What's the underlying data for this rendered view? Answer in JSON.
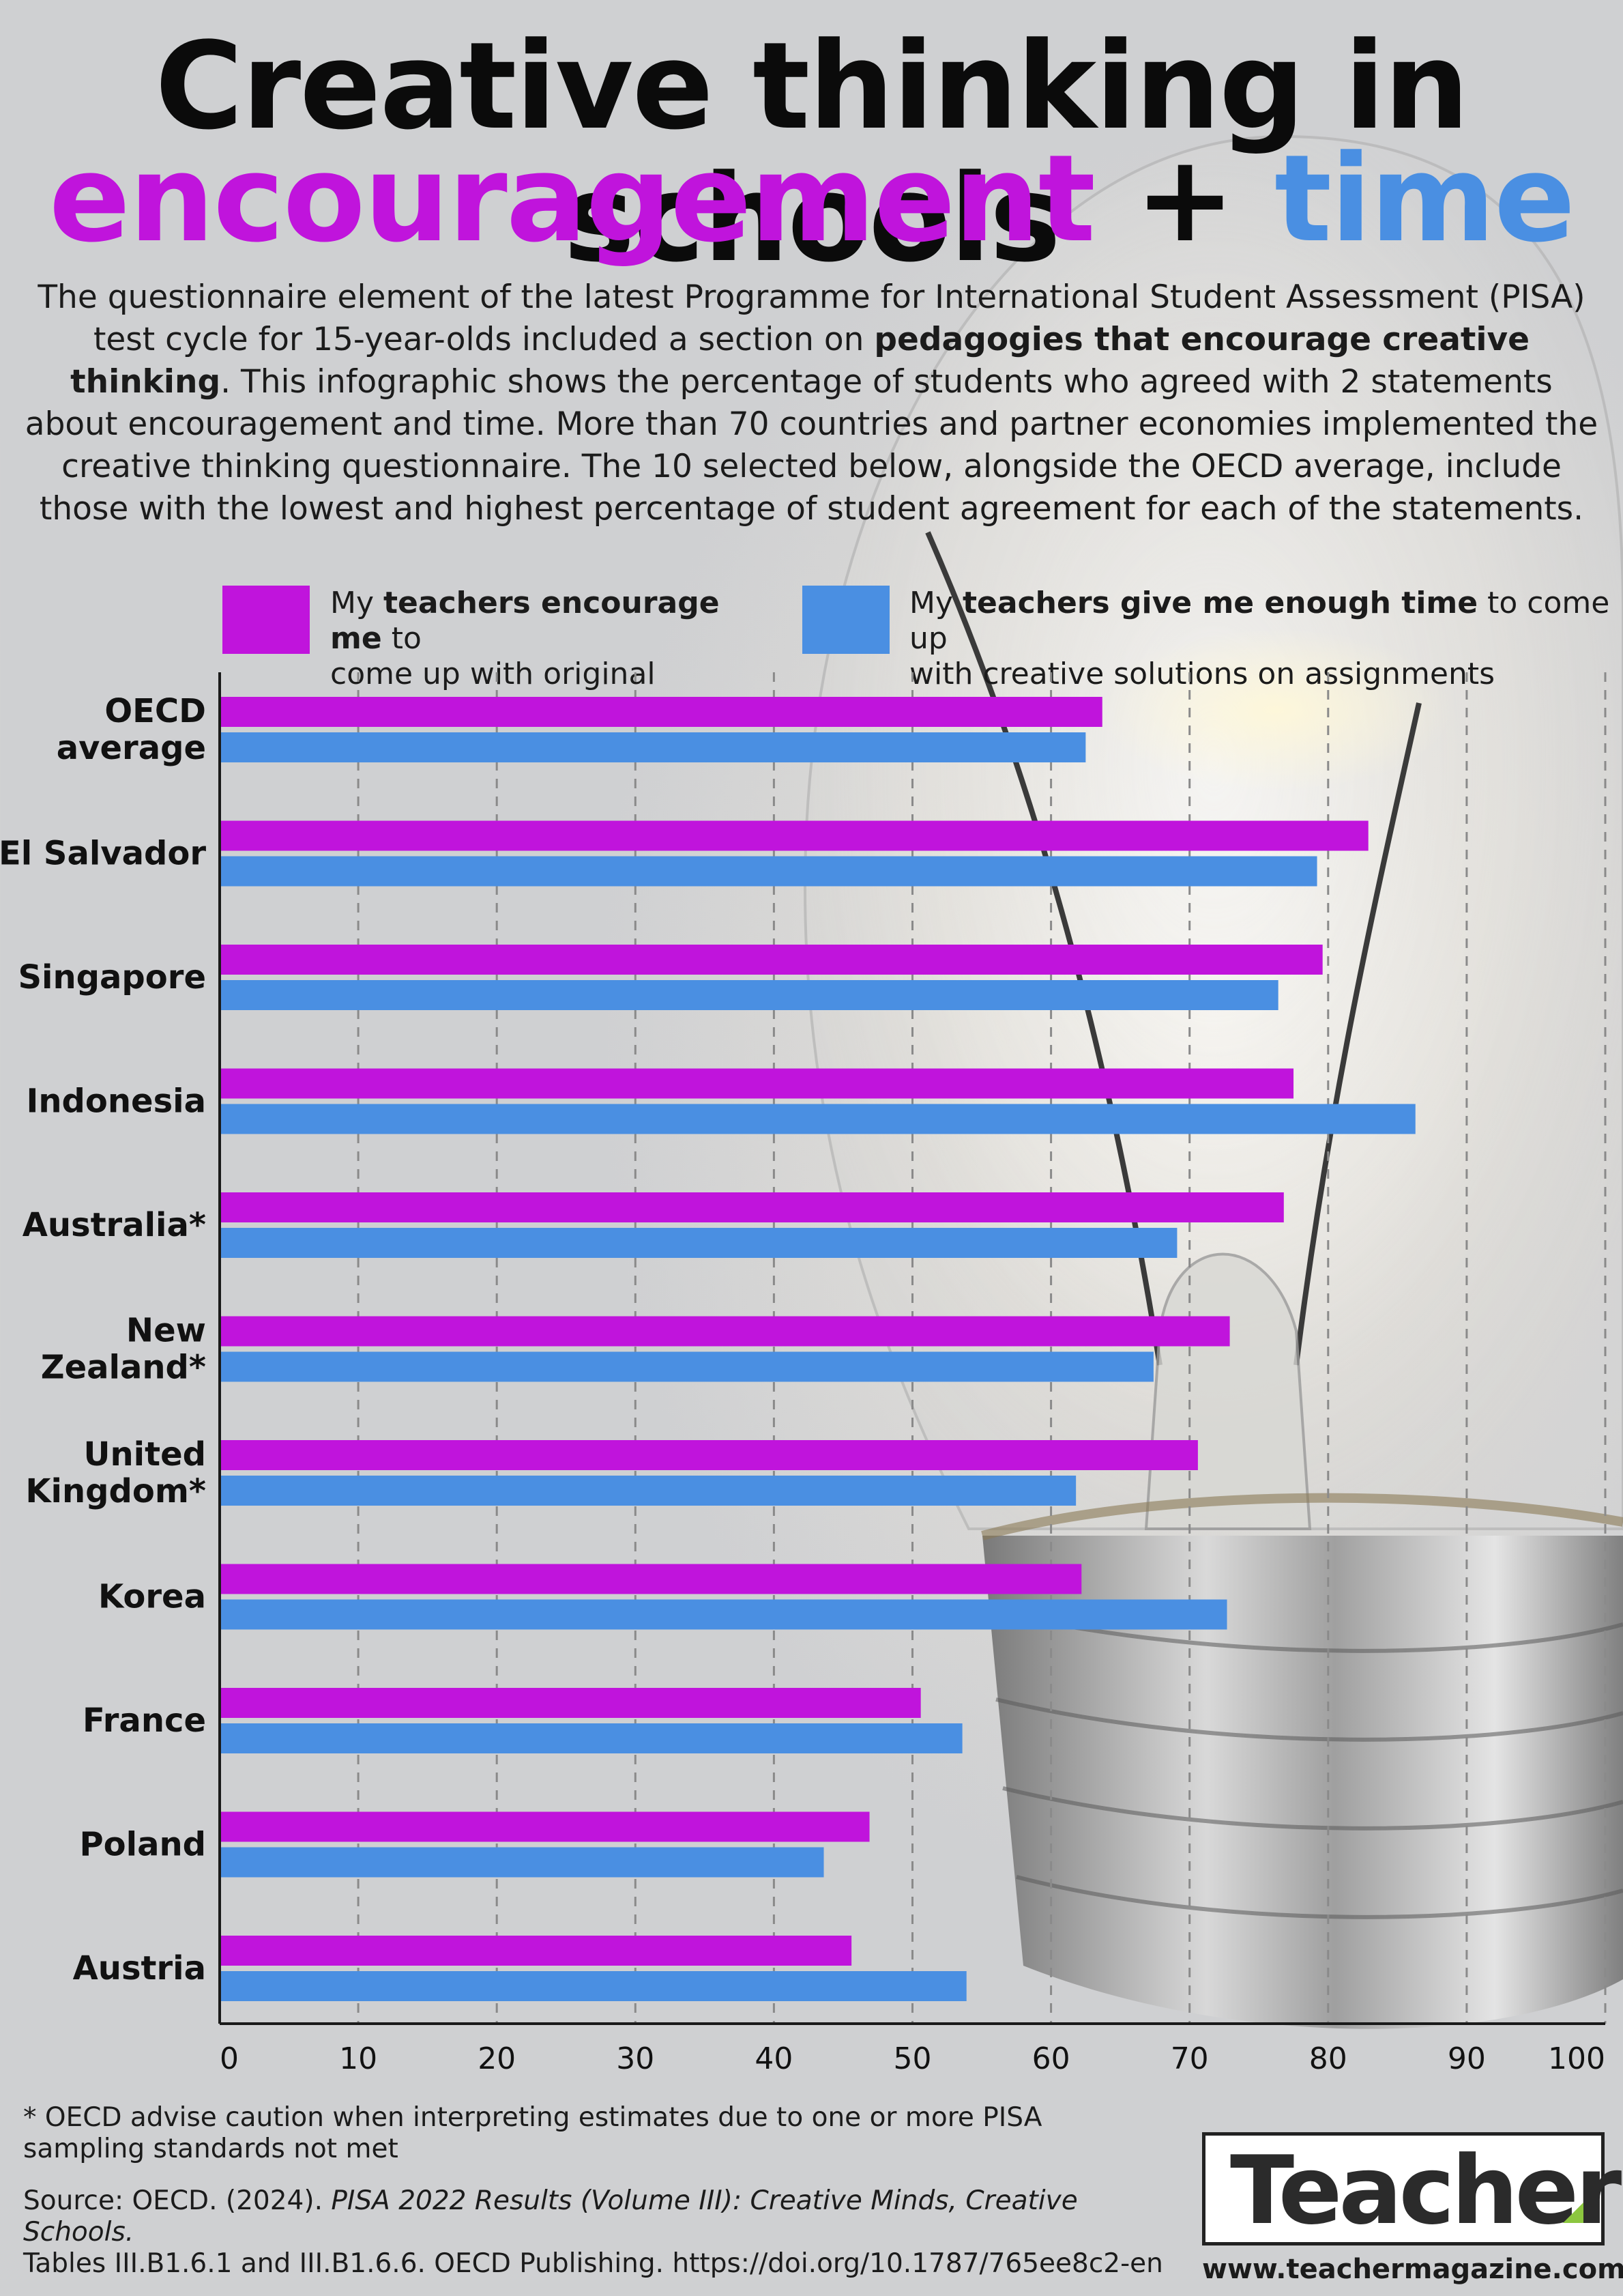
{
  "header": {
    "title_line1": "Creative thinking in schools",
    "title_word1": "encouragement",
    "title_plus": "+",
    "title_word2": "time"
  },
  "intro": {
    "part1": "The questionnaire element of the latest Programme for International Student Assessment (PISA) test cycle for 15-year-olds included a section on ",
    "bold": "pedagogies that encourage creative thinking",
    "part2": ". This infographic shows the percentage of students who agreed with 2 statements about encouragement and time. More than 70 countries and partner economies implemented the creative thinking questionnaire. The 10 selected below, alongside the OECD average, include those with the lowest and highest percentage of student agreement for each of the statements."
  },
  "legend": {
    "encourage": {
      "pre": "My ",
      "bold": "teachers encourage me",
      "post": " to",
      "line2": "come up with original answers"
    },
    "time": {
      "pre": "My ",
      "bold": "teachers give me enough time",
      "post": " to come up",
      "line2": "with creative solutions on assignments"
    }
  },
  "colors": {
    "encourage": "#c014dc",
    "time": "#4a8fe2",
    "axis": "#1a1a1a",
    "grid": "#8a8a8a"
  },
  "chart_data": {
    "type": "bar",
    "orientation": "horizontal",
    "categories": [
      [
        "OECD",
        "average"
      ],
      [
        "El Salvador"
      ],
      [
        "Singapore"
      ],
      [
        "Indonesia"
      ],
      [
        "Australia*"
      ],
      [
        "New",
        "Zealand*"
      ],
      [
        "United",
        "Kingdom*"
      ],
      [
        "Korea"
      ],
      [
        "France"
      ],
      [
        "Poland"
      ],
      [
        "Austria"
      ]
    ],
    "series": [
      {
        "name": "My teachers encourage me to come up with original answers",
        "values": [
          63.7,
          82.9,
          79.6,
          77.5,
          76.8,
          72.9,
          70.6,
          62.2,
          50.6,
          46.9,
          45.6
        ]
      },
      {
        "name": "My teachers give me enough time to come up with creative solutions on assignments",
        "values": [
          62.5,
          79.2,
          76.4,
          86.3,
          69.1,
          67.4,
          61.8,
          72.7,
          53.6,
          43.6,
          53.9
        ]
      }
    ],
    "xlim": [
      0,
      100
    ],
    "xticks": [
      0,
      10,
      20,
      30,
      40,
      50,
      60,
      70,
      80,
      90,
      100
    ],
    "grid": true,
    "legend": "top"
  },
  "footnote": {
    "line1": "* OECD advise caution when interpreting estimates due to one or more PISA",
    "line2": "sampling standards not met"
  },
  "source": {
    "pre": "Source: OECD. (2024). ",
    "italic": "PISA 2022 Results (Volume III): Creative Minds, Creative Schools.",
    "line2": "Tables III.B1.6.1 and III.B1.6.6. OECD Publishing. https://doi.org/10.1787/765ee8c2-en"
  },
  "logo": {
    "text": "Teacher",
    "website": "www.teachermagazine.com"
  }
}
